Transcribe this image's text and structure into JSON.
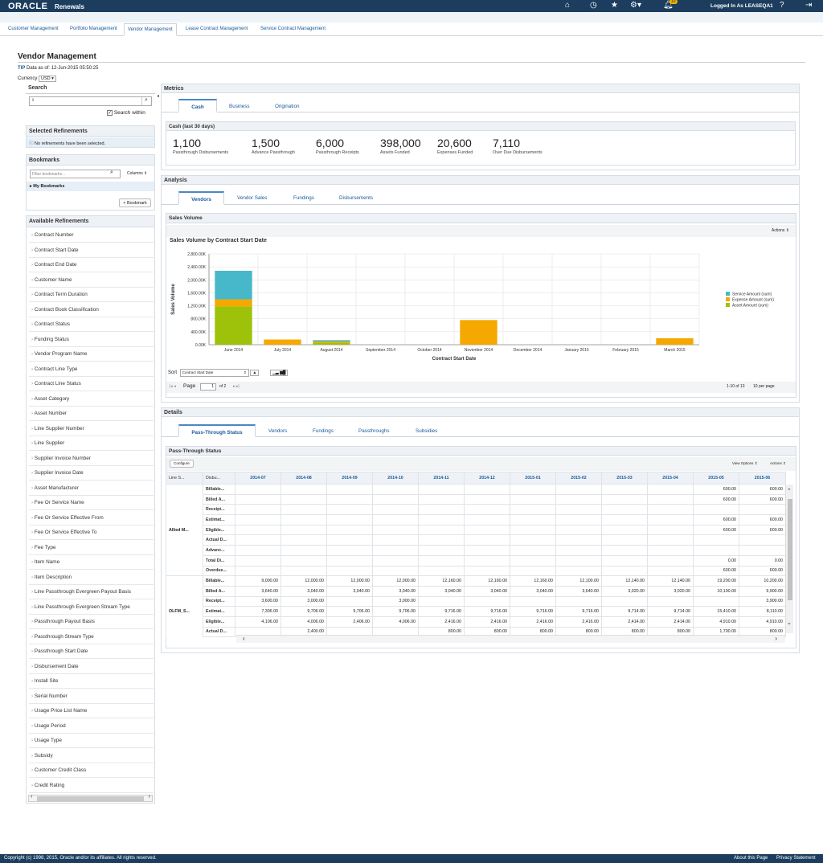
{
  "header": {
    "logo": "ORACLE",
    "app": "Renewals",
    "login": "Logged In As LEASEQA1",
    "notif_count": "10"
  },
  "nav": {
    "tabs": [
      "Customer Management",
      "Portfolio Management",
      "Vendor Management",
      "Lease Contract Management",
      "Service Contract Management"
    ],
    "active": 2
  },
  "page": {
    "title": "Vendor Management",
    "tip_label": "TIP",
    "data_as_of": "Data as of: 12-Jun-2015 05:50:25",
    "currency_label": "Currency",
    "currency_value": "USD"
  },
  "search": {
    "title": "Search",
    "search_within": "Search within"
  },
  "selected_refinements": {
    "title": "Selected Refinements",
    "message": "No refinements have been selected."
  },
  "bookmarks": {
    "title": "Bookmarks",
    "filter_placeholder": "Filter bookmarks...",
    "columns": "Columns",
    "my_bookmarks": "My Bookmarks",
    "add_button": "Bookmark"
  },
  "available_refinements": {
    "title": "Available Refinements",
    "items": [
      "Contract Number",
      "Contract Start Date",
      "Contract End Date",
      "Customer Name",
      "Contract Term Duration",
      "Contract Book Classification",
      "Contract Status",
      "Funding Status",
      "Vendor Program Name",
      "Contract Line Type",
      "Contract Line Status",
      "Asset Category",
      "Asset Number",
      "Line Supplier Number",
      "Line Supplier",
      "Supplier Invoice Number",
      "Supplier Invoice Date",
      "Asset Manufacturer",
      "Fee Or Service Name",
      "Fee Or Service Effective From",
      "Fee Or Service Effective To",
      "Fee Type",
      "Item Name",
      "Item Description",
      "Line Passthrough Evergreen Payout Basis",
      "Line Passthrough Evergreen Stream Type",
      "Passthrough Payout Basis",
      "Passthrough Stream Type",
      "Passthrough Start Date",
      "Disbursement Date",
      "Install Site",
      "Serial Number",
      "Usage Price List Name",
      "Usage Period",
      "Usage Type",
      "Subsidy",
      "Customer Credit Class",
      "Credit Rating"
    ]
  },
  "metrics": {
    "title": "Metrics",
    "tabs": [
      "Cash",
      "Business",
      "Origination"
    ],
    "active": 0,
    "section": "Cash (last 30 days)",
    "items": [
      {
        "value": "1,100",
        "label": "Passthrough Disbursements"
      },
      {
        "value": "1,500",
        "label": "Advance Passthrough"
      },
      {
        "value": "6,000",
        "label": "Passthrough Receipts"
      },
      {
        "value": "398,000",
        "label": "Assets Funded"
      },
      {
        "value": "20,600",
        "label": "Expenses Funded"
      },
      {
        "value": "7,110",
        "label": "Over Due Disbursements"
      }
    ]
  },
  "analysis": {
    "title": "Analysis",
    "tabs": [
      "Vendors",
      "Vendor Sales",
      "Fundings",
      "Disbursements"
    ],
    "active": 0,
    "section": "Sales Volume",
    "actions": "Actions",
    "sort_label": "Sort",
    "sort_value": "Contract Start Date",
    "page_label": "Page",
    "page_value": "1",
    "page_of": "of 2",
    "range": "1-10 of 13",
    "per_page": "10 per page"
  },
  "chart_data": {
    "type": "bar",
    "stacked": true,
    "title": "Sales Volume by Contract Start Date",
    "xlabel": "Contract Start Date",
    "ylabel": "Sales Volume",
    "ylim": [
      0,
      2800
    ],
    "yticks": [
      "0.00K",
      "400.00K",
      "800.00K",
      "1,200.00K",
      "1,600.00K",
      "2,000.00K",
      "2,400.00K",
      "2,800.00K"
    ],
    "categories": [
      "June 2014",
      "July 2014",
      "August 2014",
      "September 2014",
      "October 2014",
      "November 2014",
      "December 2014",
      "January 2015",
      "February 2015",
      "March 2015"
    ],
    "series": [
      {
        "name": "Asset Amount (sum)",
        "color": "#9dc209",
        "values": [
          1180,
          0,
          60,
          0,
          0,
          0,
          0,
          0,
          0,
          0
        ]
      },
      {
        "name": "Expense Amount (sum)",
        "color": "#f5a800",
        "values": [
          220,
          160,
          40,
          0,
          0,
          760,
          0,
          0,
          0,
          200
        ]
      },
      {
        "name": "Service Amount (sum)",
        "color": "#46b8c9",
        "values": [
          880,
          0,
          40,
          0,
          0,
          0,
          0,
          0,
          0,
          0
        ]
      }
    ],
    "legend": "right"
  },
  "details": {
    "title": "Details",
    "tabs": [
      "Pass-Through Status",
      "Vendors",
      "Fundings",
      "Passthroughs",
      "Subsidies"
    ],
    "active": 0,
    "section": "Pass-Through Status",
    "configure": "Configure",
    "view_options": "View Options",
    "actions": "Actions",
    "columns": [
      "Line S...",
      "Disbu...",
      "2014-07",
      "2014-08",
      "2014-09",
      "2014-10",
      "2014-11",
      "2014-12",
      "2015-01",
      "2015-02",
      "2015-03",
      "2015-04",
      "2015-05",
      "2015-06"
    ],
    "groups": [
      {
        "name": "Allied M...",
        "rows": [
          {
            "label": "Billable...",
            "vals": [
              "",
              "",
              "",
              "",
              "",
              "",
              "",
              "",
              "",
              "",
              "600.00",
              "600.00"
            ]
          },
          {
            "label": "Billed A...",
            "vals": [
              "",
              "",
              "",
              "",
              "",
              "",
              "",
              "",
              "",
              "",
              "600.00",
              "600.00"
            ]
          },
          {
            "label": "Receipt...",
            "vals": [
              "",
              "",
              "",
              "",
              "",
              "",
              "",
              "",
              "",
              "",
              "",
              ""
            ]
          },
          {
            "label": "Estimat...",
            "vals": [
              "",
              "",
              "",
              "",
              "",
              "",
              "",
              "",
              "",
              "",
              "600.00",
              "600.00"
            ]
          },
          {
            "label": "Eligible...",
            "vals": [
              "",
              "",
              "",
              "",
              "",
              "",
              "",
              "",
              "",
              "",
              "600.00",
              "600.00"
            ]
          },
          {
            "label": "Actual D...",
            "vals": [
              "",
              "",
              "",
              "",
              "",
              "",
              "",
              "",
              "",
              "",
              "",
              ""
            ]
          },
          {
            "label": "Advanc...",
            "vals": [
              "",
              "",
              "",
              "",
              "",
              "",
              "",
              "",
              "",
              "",
              "",
              ""
            ]
          },
          {
            "label": "Total Di...",
            "vals": [
              "",
              "",
              "",
              "",
              "",
              "",
              "",
              "",
              "",
              "",
              "0.00",
              "0.00"
            ]
          },
          {
            "label": "Overdue...",
            "vals": [
              "",
              "",
              "",
              "",
              "",
              "",
              "",
              "",
              "",
              "",
              "600.00",
              "600.00"
            ]
          }
        ]
      },
      {
        "name": "OLFM_S...",
        "rows": [
          {
            "label": "Billable...",
            "vals": [
              "9,000.00",
              "12,000.00",
              "12,000.00",
              "12,000.00",
              "12,160.00",
              "12,160.00",
              "12,160.00",
              "12,100.00",
              "12,140.00",
              "12,140.00",
              "19,200.00",
              "10,200.00"
            ]
          },
          {
            "label": "Billed A...",
            "vals": [
              "3,640.00",
              "3,040.00",
              "3,040.00",
              "3,040.00",
              "3,040.00",
              "3,040.00",
              "3,040.00",
              "3,640.00",
              "3,020.00",
              "3,020.00",
              "10,100.00",
              "9,900.00"
            ]
          },
          {
            "label": "Receipt...",
            "vals": [
              "3,600.00",
              "3,000.00",
              "",
              "3,000.00",
              "",
              "",
              "",
              "",
              "",
              "",
              "",
              "3,900.00"
            ]
          },
          {
            "label": "Estimat...",
            "vals": [
              "7,306.00",
              "9,706.00",
              "9,706.00",
              "9,706.00",
              "9,716.00",
              "9,716.00",
              "9,716.00",
              "9,716.00",
              "9,714.00",
              "9,714.00",
              "15,410.00",
              "8,110.00"
            ]
          },
          {
            "label": "Eligible...",
            "vals": [
              "4,106.00",
              "4,006.00",
              "2,406.00",
              "4,006.00",
              "2,416.00",
              "2,416.00",
              "2,416.00",
              "2,416.00",
              "2,414.00",
              "2,414.00",
              "4,910.00",
              "4,910.00"
            ]
          },
          {
            "label": "Actual D...",
            "vals": [
              "",
              "2,400.00",
              "",
              "",
              "800.00",
              "800.00",
              "800.00",
              "800.00",
              "800.00",
              "800.00",
              "1,700.00",
              "800.00"
            ]
          }
        ]
      }
    ]
  },
  "footer": {
    "copyright": "Copyright (c) 1998, 2015, Oracle and/or its affiliates. All rights reserved.",
    "about": "About this Page",
    "privacy": "Privacy Statement"
  }
}
